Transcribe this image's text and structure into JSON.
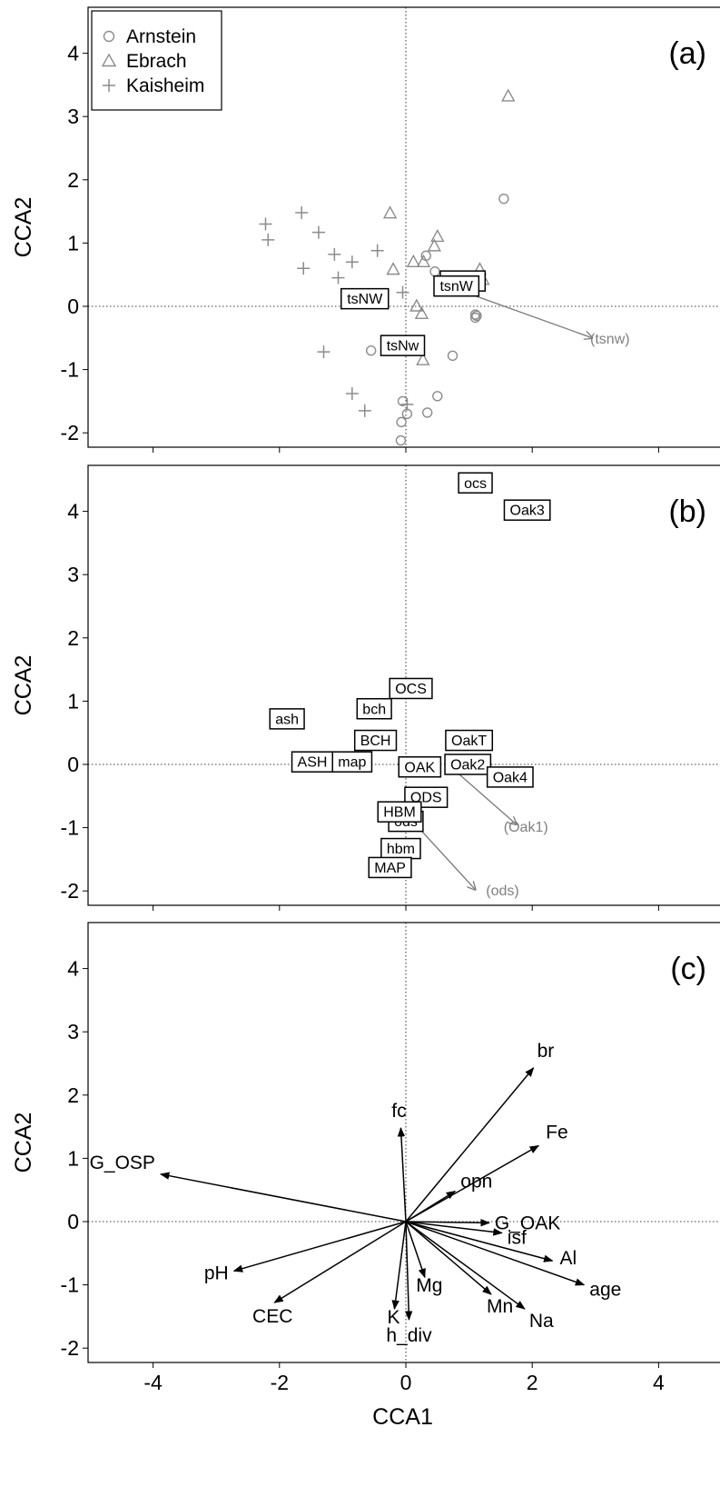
{
  "chart_data": [
    {
      "panel": "(a)",
      "type": "scatter",
      "ylabel": "CCA2",
      "xlim": [
        -5.1,
        4.6
      ],
      "ylim": [
        -2.22,
        4.65
      ],
      "yticks": [
        -2,
        -1,
        0,
        1,
        2,
        3,
        4
      ],
      "legend": {
        "position": "top-left",
        "entries": [
          {
            "label": "Arnstein",
            "marker": "circle"
          },
          {
            "label": "Ebrach",
            "marker": "triangle"
          },
          {
            "label": "Kaisheim",
            "marker": "plus"
          }
        ]
      },
      "series": [
        {
          "name": "Arnstein",
          "marker": "circle",
          "points": [
            [
              1.55,
              1.7
            ],
            [
              0.32,
              0.8
            ],
            [
              0.46,
              0.55
            ],
            [
              1.1,
              -0.13
            ],
            [
              1.1,
              -0.18
            ],
            [
              1.12,
              -0.15
            ],
            [
              -0.55,
              -0.7
            ],
            [
              0.74,
              -0.78
            ],
            [
              0.5,
              -1.42
            ],
            [
              -0.05,
              -1.5
            ],
            [
              0.02,
              -1.7
            ],
            [
              0.34,
              -1.68
            ],
            [
              -0.07,
              -1.83
            ],
            [
              -0.08,
              -2.12
            ]
          ]
        },
        {
          "name": "Ebrach",
          "marker": "triangle",
          "points": [
            [
              1.62,
              3.32
            ],
            [
              -0.25,
              1.47
            ],
            [
              0.5,
              1.1
            ],
            [
              0.45,
              0.95
            ],
            [
              0.12,
              0.7
            ],
            [
              0.28,
              0.7
            ],
            [
              -0.2,
              0.58
            ],
            [
              1.17,
              0.58
            ],
            [
              1.22,
              0.42
            ],
            [
              0.17,
              0.0
            ],
            [
              0.25,
              -0.12
            ],
            [
              0.27,
              -0.85
            ]
          ]
        },
        {
          "name": "Kaisheim",
          "marker": "plus",
          "points": [
            [
              -2.22,
              1.3
            ],
            [
              -2.18,
              1.05
            ],
            [
              -1.65,
              1.48
            ],
            [
              -1.38,
              1.17
            ],
            [
              -1.13,
              0.82
            ],
            [
              -0.85,
              0.7
            ],
            [
              -0.45,
              0.88
            ],
            [
              -1.62,
              0.6
            ],
            [
              -1.07,
              0.45
            ],
            [
              -0.05,
              0.22
            ],
            [
              -1.3,
              -0.72
            ],
            [
              -0.85,
              -1.38
            ],
            [
              -0.65,
              -1.65
            ],
            [
              0.02,
              -1.55
            ]
          ]
        }
      ],
      "labels": [
        {
          "text": "tsnW",
          "x": 0.9,
          "y": 0.4,
          "style": "box"
        },
        {
          "text": "tsnW",
          "x": 0.8,
          "y": 0.32,
          "style": "box"
        },
        {
          "text": "tsNW",
          "x": -0.65,
          "y": 0.12,
          "style": "box"
        },
        {
          "text": "tsNw",
          "x": -0.05,
          "y": -0.62,
          "style": "box"
        },
        {
          "text": "(tsnw)",
          "x": 3.23,
          "y": -0.5,
          "style": "plain"
        }
      ],
      "arrows": [
        {
          "from": [
            1.0,
            0.2
          ],
          "to": [
            2.95,
            -0.5
          ]
        }
      ]
    },
    {
      "panel": "(b)",
      "type": "scatter",
      "ylabel": "CCA2",
      "xlim": [
        -5.1,
        4.6
      ],
      "ylim": [
        -2.22,
        4.65
      ],
      "yticks": [
        -2,
        -1,
        0,
        1,
        2,
        3,
        4
      ],
      "labels": [
        {
          "text": "ocs",
          "x": 1.1,
          "y": 4.45,
          "style": "box"
        },
        {
          "text": "Oak3",
          "x": 1.92,
          "y": 4.02,
          "style": "box"
        },
        {
          "text": "OCS",
          "x": 0.08,
          "y": 1.2,
          "style": "box"
        },
        {
          "text": "bch",
          "x": -0.5,
          "y": 0.88,
          "style": "box"
        },
        {
          "text": "ash",
          "x": -1.88,
          "y": 0.72,
          "style": "box"
        },
        {
          "text": "BCH",
          "x": -0.48,
          "y": 0.38,
          "style": "box"
        },
        {
          "text": "OakT",
          "x": 1.0,
          "y": 0.38,
          "style": "box"
        },
        {
          "text": "ASH",
          "x": -1.48,
          "y": 0.04,
          "style": "box"
        },
        {
          "text": "map",
          "x": -0.85,
          "y": 0.04,
          "style": "box"
        },
        {
          "text": "OAK",
          "x": 0.22,
          "y": -0.04,
          "style": "box"
        },
        {
          "text": "Oak2",
          "x": 0.98,
          "y": 0.0,
          "style": "box"
        },
        {
          "text": "Oak4",
          "x": 1.65,
          "y": -0.2,
          "style": "box"
        },
        {
          "text": "ODS",
          "x": 0.32,
          "y": -0.52,
          "style": "box"
        },
        {
          "text": "ods",
          "x": 0.0,
          "y": -0.9,
          "style": "box"
        },
        {
          "text": "HBM",
          "x": -0.1,
          "y": -0.75,
          "style": "box"
        },
        {
          "text": "hbm",
          "x": -0.08,
          "y": -1.33,
          "style": "box"
        },
        {
          "text": "MAP",
          "x": -0.25,
          "y": -1.63,
          "style": "box"
        },
        {
          "text": "(Oak1)",
          "x": 1.9,
          "y": -0.98,
          "style": "plain"
        },
        {
          "text": "(ods)",
          "x": 1.53,
          "y": -1.98,
          "style": "plain"
        }
      ],
      "arrows": [
        {
          "from": [
            0.78,
            -0.1
          ],
          "to": [
            1.75,
            -0.95
          ]
        },
        {
          "from": [
            0.22,
            -1.02
          ],
          "to": [
            1.1,
            -1.98
          ]
        }
      ]
    },
    {
      "panel": "(c)",
      "type": "biplot",
      "xlabel": "CCA1",
      "ylabel": "CCA2",
      "xlim": [
        -5.1,
        4.6
      ],
      "ylim": [
        -2.22,
        4.65
      ],
      "xticks": [
        -4,
        -2,
        0,
        2,
        4
      ],
      "yticks": [
        -2,
        -1,
        0,
        1,
        2,
        3,
        4
      ],
      "vectors": [
        {
          "label": "br",
          "x": 2.02,
          "y": 2.43
        },
        {
          "label": "fc",
          "x": -0.08,
          "y": 1.48
        },
        {
          "label": "Fe",
          "x": 2.1,
          "y": 1.2
        },
        {
          "label": "opn",
          "x": 0.78,
          "y": 0.48
        },
        {
          "label": "G_OSP",
          "x": -3.88,
          "y": 0.75
        },
        {
          "label": "G_OAK",
          "x": 1.32,
          "y": -0.02
        },
        {
          "label": "isf",
          "x": 1.52,
          "y": -0.18
        },
        {
          "label": "Al",
          "x": 2.32,
          "y": -0.62
        },
        {
          "label": "age",
          "x": 2.82,
          "y": -1.0
        },
        {
          "label": "pH",
          "x": -2.72,
          "y": -0.78
        },
        {
          "label": "CEC",
          "x": -2.08,
          "y": -1.28
        },
        {
          "label": "Mg",
          "x": 0.3,
          "y": -0.88
        },
        {
          "label": "Mn",
          "x": 1.35,
          "y": -1.15
        },
        {
          "label": "Na",
          "x": 1.88,
          "y": -1.38
        },
        {
          "label": "K",
          "x": -0.18,
          "y": -1.38
        },
        {
          "label": "h_div",
          "x": 0.05,
          "y": -1.55
        }
      ]
    }
  ]
}
